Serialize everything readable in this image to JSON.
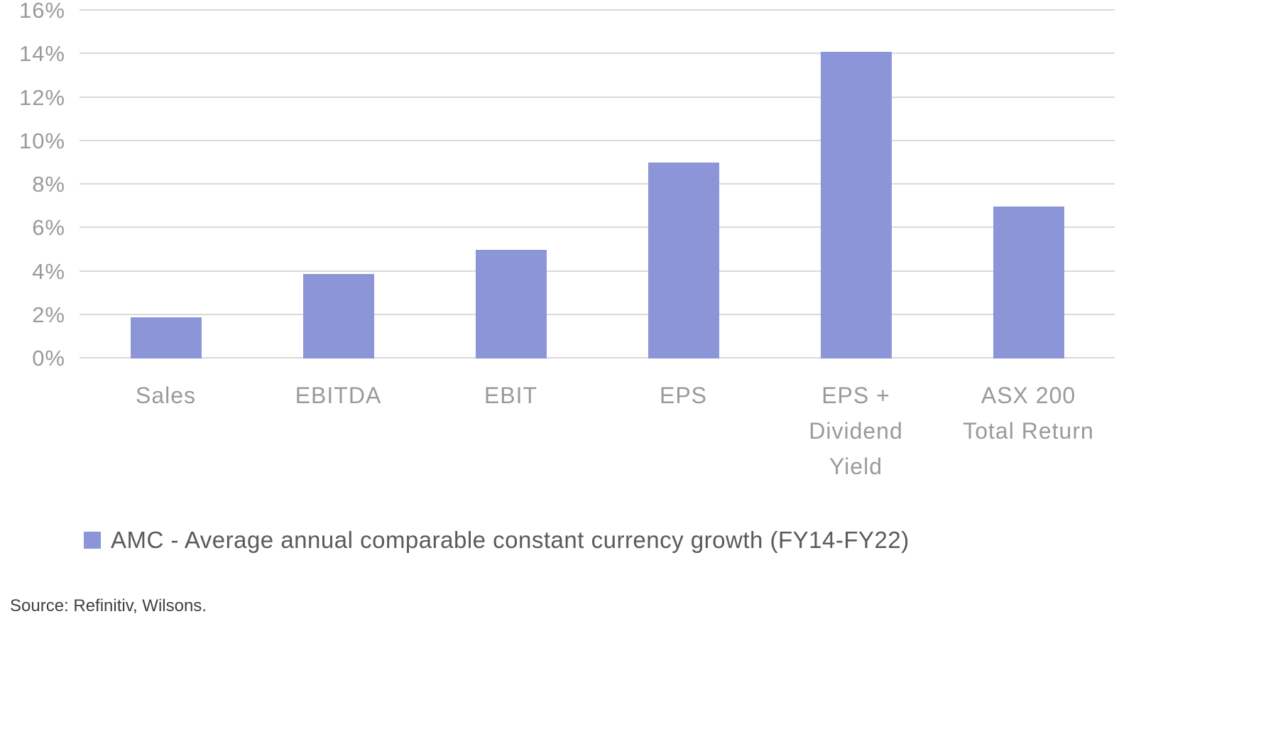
{
  "chart_data": {
    "type": "bar",
    "title": "",
    "xlabel": "",
    "ylabel": "",
    "categories": [
      "Sales",
      "EBITDA",
      "EBIT",
      "EPS",
      "EPS + Dividend Yield",
      "ASX 200 Total Return"
    ],
    "category_label_lines": [
      [
        "Sales"
      ],
      [
        "EBITDA"
      ],
      [
        "EBIT"
      ],
      [
        "EPS"
      ],
      [
        "EPS +",
        "Dividend",
        "Yield"
      ],
      [
        "ASX 200",
        "Total Return"
      ]
    ],
    "values": [
      1.9,
      3.9,
      5.0,
      9.0,
      14.1,
      7.0
    ],
    "unit": "%",
    "ylim": [
      0,
      16
    ],
    "y_ticks": [
      0,
      2,
      4,
      6,
      8,
      10,
      12,
      14,
      16
    ],
    "y_tick_labels": [
      "0%",
      "2%",
      "4%",
      "6%",
      "8%",
      "10%",
      "12%",
      "14%",
      "16%"
    ],
    "grid": true,
    "bar_color": "#8b95d7",
    "gridline_color": "#d9d9d9",
    "axis_label_color": "#9a9a9a",
    "legend": {
      "position": "bottom",
      "label": "AMC - Average annual comparable constant currency growth (FY14-FY22)"
    }
  },
  "source": {
    "text": "Source: Refinitiv, Wilsons."
  }
}
